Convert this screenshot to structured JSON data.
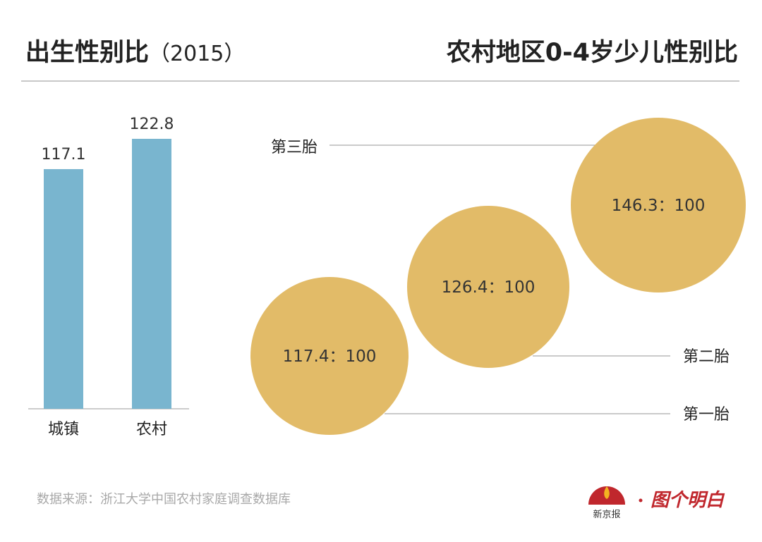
{
  "titles": {
    "left": "出生性别比",
    "left_year": "（2015）",
    "right": "农村地区0-4岁少儿性别比"
  },
  "chart_data": [
    {
      "type": "bar",
      "title": "出生性别比（2015）",
      "categories": [
        "城镇",
        "农村"
      ],
      "values": [
        117.1,
        122.8
      ],
      "value_labels": [
        "117.1",
        "122.8"
      ],
      "ylim": [
        72,
        130
      ],
      "grid": false,
      "bar_color": "#79b5cf"
    },
    {
      "type": "bubble",
      "title": "农村地区0-4岁少儿性别比",
      "categories": [
        "第一胎",
        "第二胎",
        "第三胎"
      ],
      "values": [
        117.4,
        126.4,
        146.3
      ],
      "value_labels": [
        "117.4：100",
        "126.4：100",
        "146.3：100"
      ],
      "bubble_color": "#e2bb68"
    }
  ],
  "source": "数据来源：浙江大学中国农村家庭调查数据库",
  "logo": {
    "paper": "新京报",
    "column": "图个明白",
    "color": "#c0272d"
  }
}
